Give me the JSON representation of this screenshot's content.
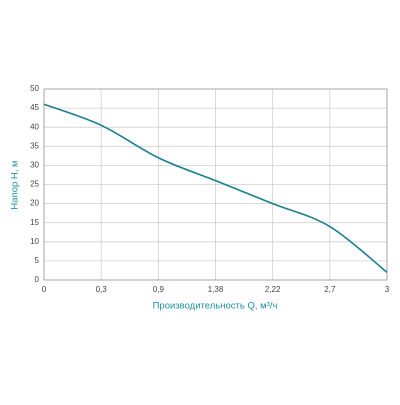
{
  "chart_data": {
    "type": "line",
    "x_label": "Производительность Q, м³/ч",
    "y_label": "Напор Н, м",
    "categories": [
      "0",
      "0,3",
      "0,9",
      "1,38",
      "2,22",
      "2,7",
      "3"
    ],
    "series": [
      {
        "color": "#1a7f8c",
        "values": [
          46,
          40.5,
          32,
          26,
          20,
          14,
          2
        ]
      }
    ],
    "ylim": [
      0,
      50
    ],
    "yticks": [
      0,
      5,
      10,
      15,
      20,
      25,
      30,
      35,
      40,
      45,
      50
    ],
    "grid": true
  }
}
